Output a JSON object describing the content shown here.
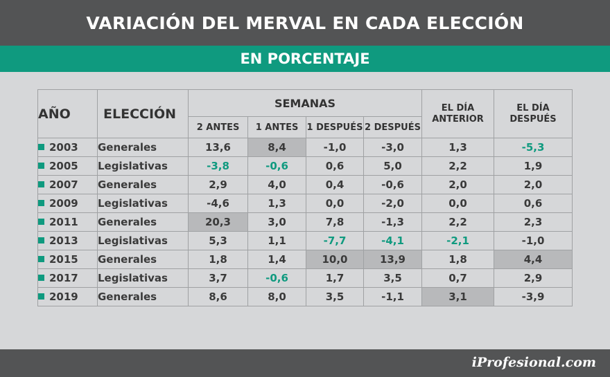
{
  "title": "VARIACIÓN DEL MERVAL EN CADA ELECCIÓN",
  "subtitle": "EN PORCENTAJE",
  "brand": "iProfesional.com",
  "colors": {
    "accent": "#0f9a7f",
    "dark_bar": "#535455",
    "highlight": "#b8b9bb"
  },
  "chart_data": {
    "type": "table",
    "headers": {
      "year": "AÑO",
      "election": "ELECCIÓN",
      "weeks_group": "SEMANAS",
      "weeks": [
        "2 ANTES",
        "1 ANTES",
        "1 DESPUÉS",
        "2 DESPUÉS"
      ],
      "day_before": "EL DÍA ANTERIOR",
      "day_after": "EL DÍA DESPUÉS"
    },
    "rows": [
      {
        "year": "2003",
        "election": "Generales",
        "values": [
          "13,6",
          "8,4",
          "-1,0",
          "-3,0",
          "1,3",
          "-5,3"
        ],
        "highlight": [
          false,
          true,
          false,
          false,
          false,
          false
        ],
        "accent": [
          false,
          false,
          false,
          false,
          false,
          true
        ]
      },
      {
        "year": "2005",
        "election": "Legislativas",
        "values": [
          "-3,8",
          "-0,6",
          "0,6",
          "5,0",
          "2,2",
          "1,9"
        ],
        "highlight": [
          false,
          false,
          false,
          false,
          false,
          false
        ],
        "accent": [
          true,
          true,
          false,
          false,
          false,
          false
        ]
      },
      {
        "year": "2007",
        "election": "Generales",
        "values": [
          "2,9",
          "4,0",
          "0,4",
          "-0,6",
          "2,0",
          "2,0"
        ],
        "highlight": [
          false,
          false,
          false,
          false,
          false,
          false
        ],
        "accent": [
          false,
          false,
          false,
          false,
          false,
          false
        ]
      },
      {
        "year": "2009",
        "election": "Legislativas",
        "values": [
          "-4,6",
          "1,3",
          "0,0",
          "-2,0",
          "0,0",
          "0,6"
        ],
        "highlight": [
          false,
          false,
          false,
          false,
          false,
          false
        ],
        "accent": [
          false,
          false,
          false,
          false,
          false,
          false
        ]
      },
      {
        "year": "2011",
        "election": "Generales",
        "values": [
          "20,3",
          "3,0",
          "7,8",
          "-1,3",
          "2,2",
          "2,3"
        ],
        "highlight": [
          true,
          false,
          false,
          false,
          false,
          false
        ],
        "accent": [
          false,
          false,
          false,
          false,
          false,
          false
        ]
      },
      {
        "year": "2013",
        "election": "Legislativas",
        "values": [
          "5,3",
          "1,1",
          "-7,7",
          "-4,1",
          "-2,1",
          "-1,0"
        ],
        "highlight": [
          false,
          false,
          false,
          false,
          false,
          false
        ],
        "accent": [
          false,
          false,
          true,
          true,
          true,
          false
        ]
      },
      {
        "year": "2015",
        "election": "Generales",
        "values": [
          "1,8",
          "1,4",
          "10,0",
          "13,9",
          "1,8",
          "4,4"
        ],
        "highlight": [
          false,
          false,
          true,
          true,
          false,
          true
        ],
        "accent": [
          false,
          false,
          false,
          false,
          false,
          false
        ]
      },
      {
        "year": "2017",
        "election": "Legislativas",
        "values": [
          "3,7",
          "-0,6",
          "1,7",
          "3,5",
          "0,7",
          "2,9"
        ],
        "highlight": [
          false,
          false,
          false,
          false,
          false,
          false
        ],
        "accent": [
          false,
          true,
          false,
          false,
          false,
          false
        ]
      },
      {
        "year": "2019",
        "election": "Generales",
        "values": [
          "8,6",
          "8,0",
          "3,5",
          "-1,1",
          "3,1",
          "-3,9"
        ],
        "highlight": [
          false,
          false,
          false,
          false,
          true,
          false
        ],
        "accent": [
          false,
          false,
          false,
          false,
          false,
          false
        ]
      }
    ]
  }
}
